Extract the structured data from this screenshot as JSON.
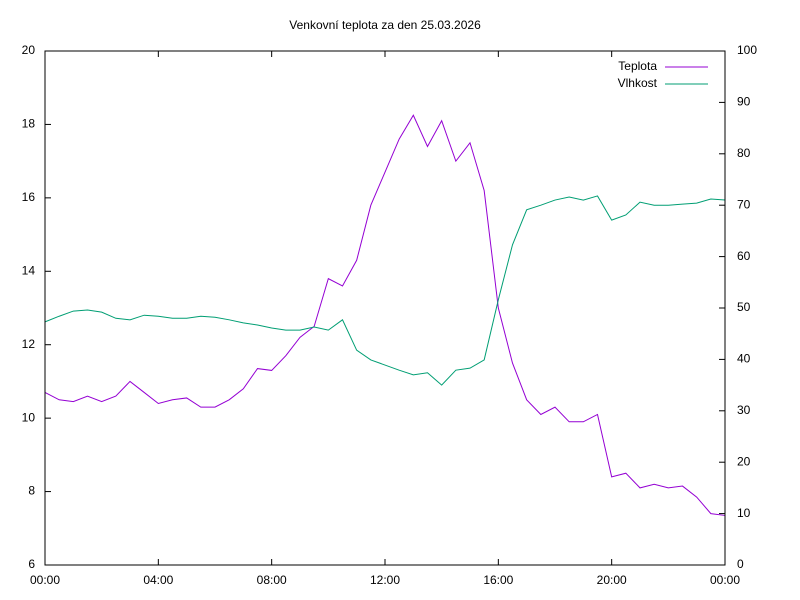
{
  "chart_data": {
    "type": "line",
    "title": "Venkovní teplota za den 25.03.2026",
    "x": [
      0,
      0.5,
      1,
      1.5,
      2,
      2.5,
      3,
      3.5,
      4,
      4.5,
      5,
      5.5,
      6,
      6.5,
      7,
      7.5,
      8,
      8.5,
      9,
      9.5,
      10,
      10.5,
      11,
      11.5,
      12,
      12.5,
      13,
      13.5,
      14,
      14.5,
      15,
      15.5,
      16,
      16.5,
      17,
      17.5,
      18,
      18.5,
      19,
      19.5,
      20,
      20.5,
      21,
      21.5,
      22,
      22.5,
      23,
      23.5,
      24
    ],
    "series": [
      {
        "name": "Teplota",
        "color": "#9400d3",
        "axis": "y",
        "values": [
          10.7,
          10.5,
          10.45,
          10.6,
          10.45,
          10.6,
          11.0,
          10.7,
          10.4,
          10.5,
          10.55,
          10.3,
          10.3,
          10.5,
          10.8,
          11.35,
          11.3,
          11.7,
          12.2,
          12.5,
          13.8,
          13.6,
          14.3,
          15.8,
          16.7,
          17.6,
          18.25,
          17.4,
          18.1,
          17.0,
          17.5,
          16.2,
          13.0,
          11.5,
          10.5,
          10.1,
          10.3,
          9.9,
          9.9,
          10.1,
          8.4,
          8.5,
          8.1,
          8.2,
          8.1,
          8.15,
          7.85,
          7.4,
          7.35
        ]
      },
      {
        "name": "Vlhkost",
        "color": "#009e73",
        "axis": "y2",
        "values": [
          47.3,
          48.4,
          49.4,
          49.6,
          49.2,
          48,
          47.7,
          48.6,
          48.4,
          48,
          48,
          48.4,
          48.2,
          47.7,
          47.1,
          46.7,
          46.1,
          45.7,
          45.7,
          46.3,
          45.7,
          47.7,
          41.8,
          39.9,
          38.9,
          37.9,
          37,
          37.4,
          35,
          37.9,
          38.3,
          39.9,
          51.6,
          62.3,
          69.1,
          70,
          71,
          71.6,
          71,
          71.8,
          67.1,
          68.1,
          70.6,
          70,
          70,
          70.2,
          70.4,
          71.2,
          71
        ]
      }
    ],
    "xlim": [
      0,
      24
    ],
    "xticks": [
      {
        "value": 0,
        "label": "00:00"
      },
      {
        "value": 4,
        "label": "04:00"
      },
      {
        "value": 8,
        "label": "08:00"
      },
      {
        "value": 12,
        "label": "12:00"
      },
      {
        "value": 16,
        "label": "16:00"
      },
      {
        "value": 20,
        "label": "20:00"
      },
      {
        "value": 24,
        "label": "00:00"
      }
    ],
    "ylim": [
      6,
      20
    ],
    "yticks": [
      6,
      8,
      10,
      12,
      14,
      16,
      18,
      20
    ],
    "y2lim": [
      0,
      100
    ],
    "y2ticks": [
      0,
      10,
      20,
      30,
      40,
      50,
      60,
      70,
      80,
      90,
      100
    ],
    "grid": false,
    "legend": "top-right"
  }
}
